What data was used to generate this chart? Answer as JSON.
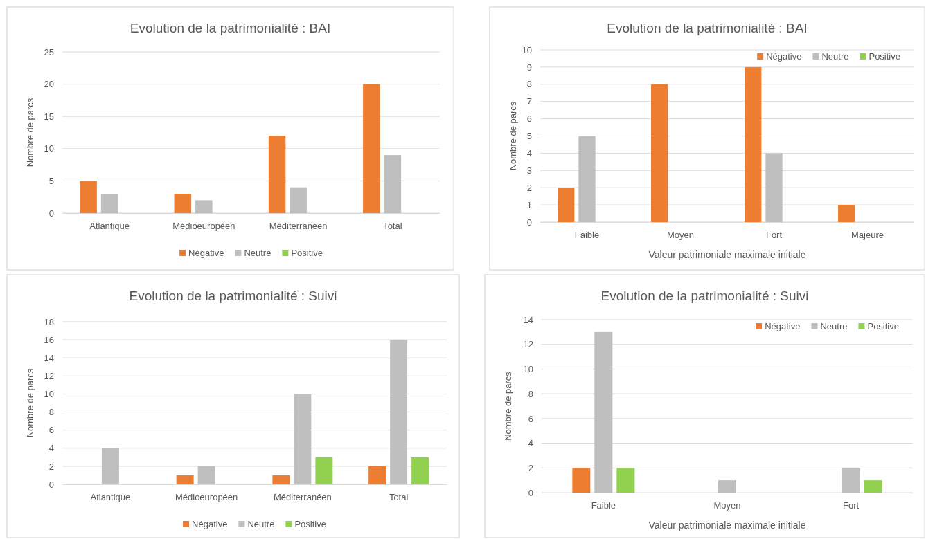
{
  "chart_data": [
    {
      "type": "bar",
      "title": "Evolution de la patrimonialité : BAI",
      "ylabel": "Nombre de parcs",
      "categories": [
        "Atlantique",
        "Médioeuropéen",
        "Méditerranéen",
        "Total"
      ],
      "series": [
        {
          "name": "Négative",
          "color": "#ed7d31",
          "values": [
            5,
            3,
            12,
            20
          ]
        },
        {
          "name": "Neutre",
          "color": "#bfbfbf",
          "values": [
            3,
            2,
            4,
            9
          ]
        },
        {
          "name": "Positive",
          "color": "#92d050",
          "values": [
            0,
            0,
            0,
            0
          ]
        }
      ],
      "ylim": [
        0,
        25
      ],
      "yticks": [
        0,
        5,
        10,
        15,
        20,
        25
      ],
      "grid": "y",
      "legend": "bottom"
    },
    {
      "type": "bar",
      "title": "Evolution de la patrimonialité : BAI",
      "ylabel": "Nombre de parcs",
      "xlabel": "Valeur patrimoniale maximale initiale",
      "categories": [
        "Faible",
        "Moyen",
        "Fort",
        "Majeure"
      ],
      "series": [
        {
          "name": "Négative",
          "color": "#ed7d31",
          "values": [
            2,
            8,
            9,
            1
          ]
        },
        {
          "name": "Neutre",
          "color": "#bfbfbf",
          "values": [
            5,
            0,
            4,
            0
          ]
        },
        {
          "name": "Positive",
          "color": "#92d050",
          "values": [
            0,
            0,
            0,
            0
          ]
        }
      ],
      "ylim": [
        0,
        10
      ],
      "yticks": [
        0,
        1,
        2,
        3,
        4,
        5,
        6,
        7,
        8,
        9,
        10
      ],
      "grid": "y",
      "legend": "top right"
    },
    {
      "type": "bar",
      "title": "Evolution de la patrimonialité : Suivi",
      "ylabel": "Nombre de parcs",
      "categories": [
        "Atlantique",
        "Médioeuropéen",
        "Méditerranéen",
        "Total"
      ],
      "series": [
        {
          "name": "Négative",
          "color": "#ed7d31",
          "values": [
            0,
            1,
            1,
            2
          ]
        },
        {
          "name": "Neutre",
          "color": "#bfbfbf",
          "values": [
            4,
            2,
            10,
            16
          ]
        },
        {
          "name": "Positive",
          "color": "#92d050",
          "values": [
            0,
            0,
            3,
            3
          ]
        }
      ],
      "ylim": [
        0,
        18
      ],
      "yticks": [
        0,
        2,
        4,
        6,
        8,
        10,
        12,
        14,
        16,
        18
      ],
      "grid": "y",
      "legend": "bottom"
    },
    {
      "type": "bar",
      "title": "Evolution de la patrimonialité : Suivi",
      "ylabel": "Nombre de parcs",
      "xlabel": "Valeur patrimoniale maximale initiale",
      "categories": [
        "Faible",
        "Moyen",
        "Fort"
      ],
      "series": [
        {
          "name": "Négative",
          "color": "#ed7d31",
          "values": [
            2,
            0,
            0
          ]
        },
        {
          "name": "Neutre",
          "color": "#bfbfbf",
          "values": [
            13,
            1,
            2
          ]
        },
        {
          "name": "Positive",
          "color": "#92d050",
          "values": [
            2,
            0,
            1
          ]
        }
      ],
      "ylim": [
        0,
        14
      ],
      "yticks": [
        0,
        2,
        4,
        6,
        8,
        10,
        12,
        14
      ],
      "grid": "y",
      "legend": "top right"
    }
  ]
}
